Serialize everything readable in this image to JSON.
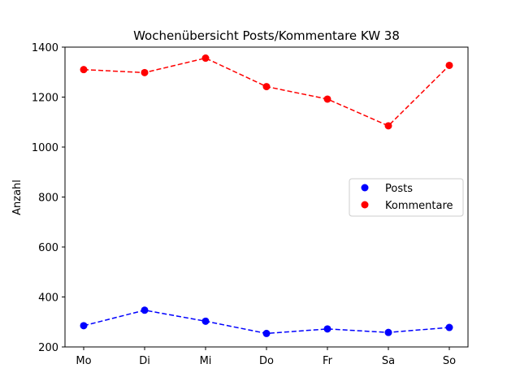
{
  "chart_data": {
    "type": "line",
    "title": "Wochenübersicht Posts/Kommentare KW 38",
    "xlabel": "",
    "ylabel": "Anzahl",
    "categories": [
      "Mo",
      "Di",
      "Mi",
      "Do",
      "Fr",
      "Sa",
      "So"
    ],
    "ylim": [
      200,
      1400
    ],
    "yticks": [
      200,
      400,
      600,
      800,
      1000,
      1200,
      1400
    ],
    "grid": false,
    "legend_position": "right",
    "series": [
      {
        "name": "Posts",
        "color": "#0000ff",
        "line_style": "dashed",
        "marker": "circle",
        "values": [
          285,
          347,
          303,
          254,
          272,
          258,
          278
        ]
      },
      {
        "name": "Kommentare",
        "color": "#ff0000",
        "line_style": "dashed",
        "marker": "circle",
        "values": [
          1310,
          1298,
          1356,
          1242,
          1192,
          1085,
          1327
        ]
      }
    ]
  }
}
